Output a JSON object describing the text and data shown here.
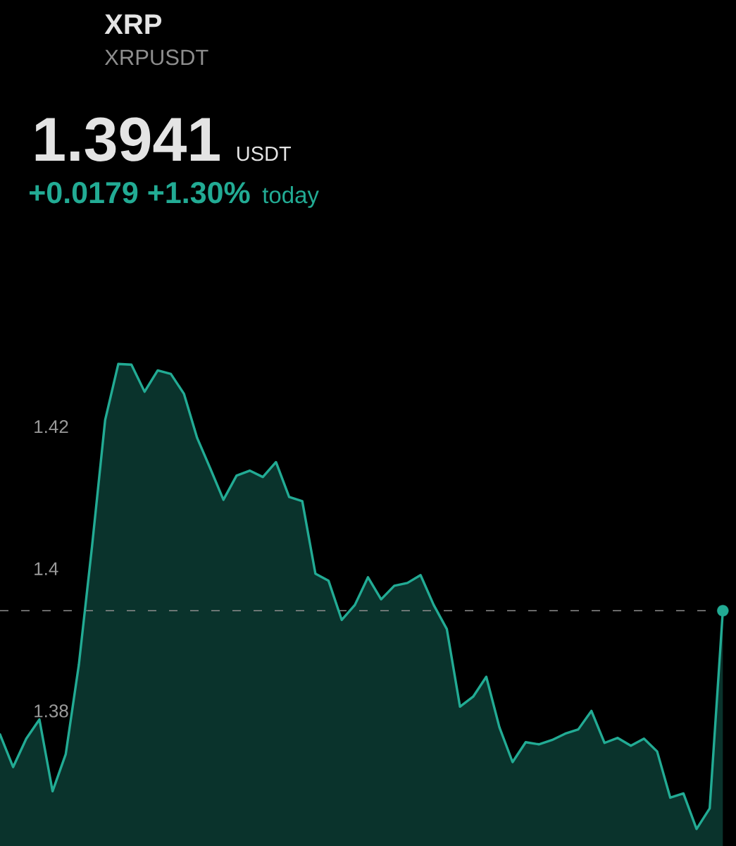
{
  "chart_data": {
    "type": "area",
    "title": "XRP",
    "subtitle": "XRPUSDT",
    "annotations": [
      "1.3941",
      "USDT",
      "+0.0179 +1.30%",
      "today"
    ],
    "categories": [
      null,
      null,
      null,
      null,
      null,
      null,
      null,
      null,
      null,
      null,
      null,
      null,
      null,
      null,
      null,
      null,
      null,
      null,
      null,
      null,
      null,
      null,
      null,
      null,
      null,
      null,
      null,
      null,
      null,
      null,
      null,
      null,
      null,
      null,
      null,
      null,
      null,
      null,
      null,
      null,
      null,
      null,
      null,
      null,
      null,
      null,
      null,
      null,
      null,
      null,
      null,
      null,
      null,
      null,
      null,
      null
    ],
    "series": [
      {
        "color": "#22ab94",
        "values": [
          1.3767,
          1.3721,
          1.3761,
          1.3788,
          1.3687,
          1.3739,
          1.3865,
          1.4031,
          1.4209,
          1.4288,
          1.4287,
          1.4249,
          1.4279,
          1.4274,
          1.4246,
          1.4184,
          1.4141,
          1.4097,
          1.4131,
          1.4138,
          1.4129,
          1.415,
          1.4101,
          1.4095,
          1.3993,
          1.3983,
          1.3928,
          1.3949,
          1.3988,
          1.3957,
          1.3976,
          1.398,
          1.3991,
          1.3949,
          1.3915,
          1.3806,
          1.382,
          1.3848,
          1.3777,
          1.3728,
          1.3756,
          1.3753,
          1.3759,
          1.3768,
          1.3774,
          1.38,
          1.3755,
          1.3762,
          1.3751,
          1.3761,
          1.3743,
          1.3678,
          1.3684,
          1.3634,
          1.3663,
          1.3941
        ]
      },
      {
        "type": "scatter",
        "marker": "circle",
        "color": "#22ab94",
        "values": [
          null,
          null,
          null,
          null,
          null,
          null,
          null,
          null,
          null,
          null,
          null,
          null,
          null,
          null,
          null,
          null,
          null,
          null,
          null,
          null,
          null,
          null,
          null,
          null,
          null,
          null,
          null,
          null,
          null,
          null,
          null,
          null,
          null,
          null,
          null,
          null,
          null,
          null,
          null,
          null,
          null,
          null,
          null,
          null,
          null,
          null,
          null,
          null,
          null,
          null,
          null,
          null,
          null,
          null,
          null,
          1.3941
        ]
      }
    ],
    "ylim": [
      1.361,
      1.48
    ],
    "yticks": [
      1.38,
      1.4,
      1.42
    ],
    "tick_labels": "y",
    "ref_lines": [
      {
        "axis": "y",
        "value": 1.3941,
        "color": "#8c8c8c",
        "line_style": "dashed"
      }
    ]
  }
}
